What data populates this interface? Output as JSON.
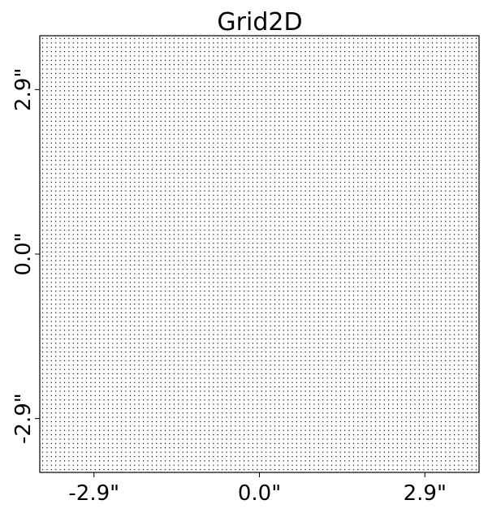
{
  "chart_data": {
    "type": "scatter",
    "title": "Grid2D",
    "xlabel": "",
    "ylabel": "",
    "grid": {
      "description": "regular 2D grid of points",
      "x_start": -3.8,
      "x_end": 3.8,
      "y_start": -3.8,
      "y_end": 3.8,
      "points_per_axis": 100
    },
    "xlim": [
      -3.85,
      3.85
    ],
    "ylim": [
      -3.85,
      3.85
    ],
    "x_ticks": [
      {
        "value": -2.9,
        "label": "-2.9\""
      },
      {
        "value": 0.0,
        "label": "0.0\""
      },
      {
        "value": 2.9,
        "label": "2.9\""
      }
    ],
    "y_ticks": [
      {
        "value": 2.9,
        "label": "2.9\""
      },
      {
        "value": 0.0,
        "label": "0.0\""
      },
      {
        "value": -2.9,
        "label": "-2.9\""
      }
    ],
    "marker_color": "#000000",
    "grid_lines": false,
    "legend": "none"
  }
}
